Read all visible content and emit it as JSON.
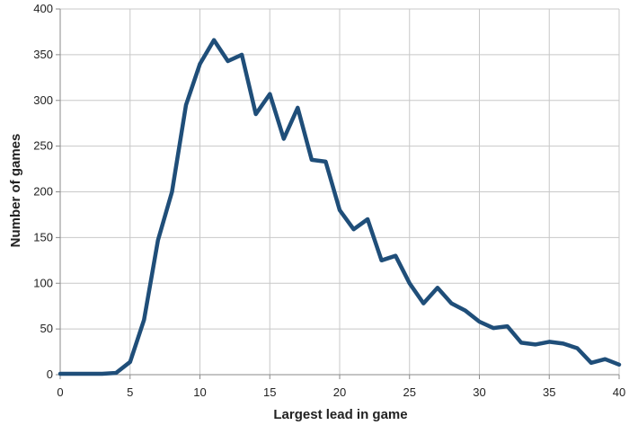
{
  "chart_data": {
    "type": "line",
    "title": "",
    "xlabel": "Largest lead in game",
    "ylabel": "Number of games",
    "xlim": [
      0,
      40
    ],
    "ylim": [
      0,
      400
    ],
    "xticks": [
      0,
      5,
      10,
      15,
      20,
      25,
      30,
      35,
      40
    ],
    "yticks": [
      0,
      50,
      100,
      150,
      200,
      250,
      300,
      350,
      400
    ],
    "grid": true,
    "legend": "none",
    "series": [
      {
        "color": "#1f4e79",
        "x": [
          0,
          1,
          2,
          3,
          4,
          5,
          6,
          7,
          8,
          9,
          10,
          11,
          12,
          13,
          14,
          15,
          16,
          17,
          18,
          19,
          20,
          21,
          22,
          23,
          24,
          25,
          26,
          27,
          28,
          29,
          30,
          31,
          32,
          33,
          34,
          35,
          36,
          37,
          38,
          39,
          40
        ],
        "y": [
          1,
          1,
          1,
          1,
          2,
          14,
          60,
          147,
          200,
          295,
          340,
          366,
          343,
          350,
          285,
          307,
          258,
          292,
          235,
          233,
          180,
          159,
          170,
          125,
          130,
          100,
          78,
          95,
          78,
          70,
          58,
          51,
          53,
          35,
          33,
          36,
          34,
          29,
          13,
          17,
          11
        ]
      }
    ]
  }
}
